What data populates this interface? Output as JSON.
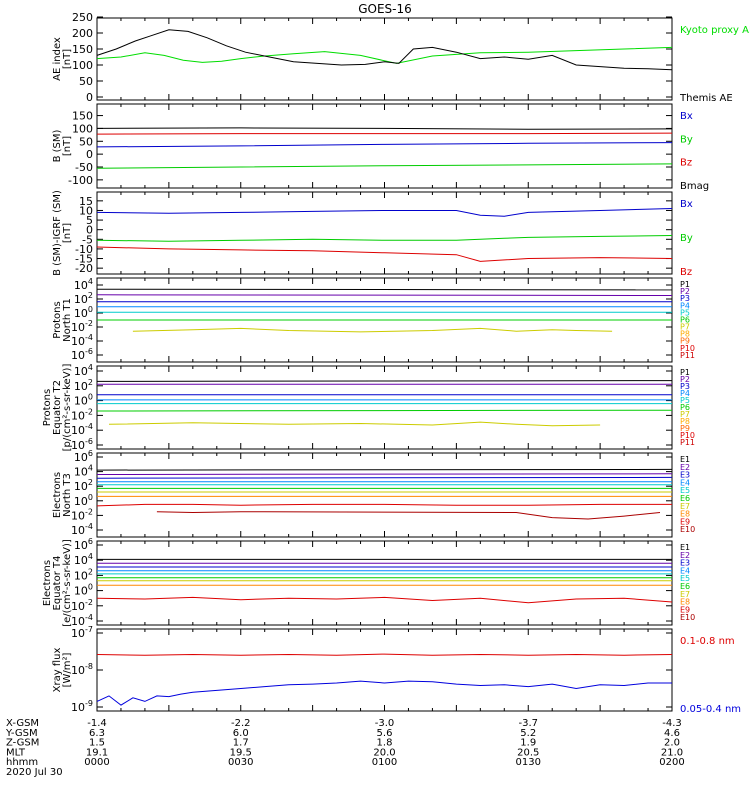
{
  "title": "GOES-16",
  "date_label": "2020 Jul 30",
  "orbit_rows": [
    {
      "label": "X-GSM",
      "values": [
        "-1.4",
        "-2.2",
        "-3.0",
        "-3.7",
        "-4.3"
      ]
    },
    {
      "label": "Y-GSM",
      "values": [
        "6.3",
        "6.0",
        "5.6",
        "5.2",
        "4.6"
      ]
    },
    {
      "label": "Z-GSM",
      "values": [
        "1.5",
        "1.7",
        "1.8",
        "1.9",
        "2.0"
      ]
    },
    {
      "label": "MLT",
      "values": [
        "19.1",
        "19.5",
        "20.0",
        "20.5",
        "21.0"
      ]
    },
    {
      "label": "hhmm",
      "values": [
        "0000",
        "0030",
        "0100",
        "0130",
        "0200"
      ]
    }
  ],
  "chart_data": [
    {
      "type": "line",
      "ylabel": [
        "AE index",
        "[nT]"
      ],
      "yscale": "linear",
      "ylim": [
        0,
        250
      ],
      "yticks": [
        "0",
        "50",
        "100",
        "150",
        "200",
        "250"
      ],
      "series": [
        {
          "name": "Kyoto proxy AE",
          "color": "#00dd00",
          "x": [
            0,
            10,
            20,
            28,
            36,
            44,
            52,
            60,
            70,
            82,
            95,
            110,
            125,
            140,
            160,
            180,
            200,
            220,
            240
          ],
          "y": [
            120,
            125,
            138,
            130,
            115,
            108,
            112,
            120,
            128,
            135,
            142,
            130,
            105,
            128,
            138,
            140,
            145,
            150,
            155
          ]
        },
        {
          "name": "Themis AE",
          "color": "#000000",
          "x": [
            0,
            8,
            16,
            22,
            30,
            38,
            46,
            54,
            62,
            72,
            82,
            92,
            102,
            112,
            120,
            126,
            132,
            140,
            150,
            160,
            170,
            180,
            190,
            200,
            210,
            220,
            230,
            240
          ],
          "y": [
            130,
            150,
            175,
            190,
            210,
            205,
            185,
            160,
            140,
            125,
            110,
            105,
            100,
            102,
            110,
            105,
            150,
            155,
            140,
            120,
            125,
            118,
            130,
            100,
            95,
            90,
            88,
            85
          ]
        }
      ]
    },
    {
      "type": "line",
      "ylabel": [
        "B (SM)",
        "[nT]"
      ],
      "yscale": "linear",
      "ylim": [
        -120,
        160
      ],
      "yticks": [
        "-100",
        "-50",
        "0",
        "50",
        "100",
        "150"
      ],
      "series": [
        {
          "name": "Bx",
          "color": "#0000cc",
          "x": [
            0,
            60,
            120,
            180,
            240
          ],
          "y": [
            28,
            32,
            38,
            42,
            45
          ]
        },
        {
          "name": "By",
          "color": "#00cc00",
          "x": [
            0,
            60,
            120,
            180,
            240
          ],
          "y": [
            -55,
            -50,
            -45,
            -42,
            -38
          ]
        },
        {
          "name": "Bz",
          "color": "#dd0000",
          "x": [
            0,
            60,
            120,
            180,
            240
          ],
          "y": [
            78,
            80,
            80,
            80,
            82
          ]
        },
        {
          "name": "Bmag",
          "color": "#000000",
          "x": [
            0,
            60,
            120,
            180,
            240
          ],
          "y": [
            100,
            102,
            100,
            97,
            98
          ]
        }
      ]
    },
    {
      "type": "line",
      "ylabel": [
        "B (SM)-IGRF (SM)",
        "[nT]"
      ],
      "yscale": "linear",
      "ylim": [
        -22,
        17
      ],
      "yticks": [
        "-20",
        "-15",
        "-10",
        "-5",
        "0",
        "5",
        "10",
        "15"
      ],
      "series": [
        {
          "name": "Bx",
          "color": "#0000cc",
          "x": [
            0,
            30,
            60,
            90,
            120,
            150,
            160,
            170,
            180,
            210,
            240
          ],
          "y": [
            9,
            8.5,
            9,
            9.5,
            10,
            10,
            7.5,
            7,
            9,
            10,
            11
          ]
        },
        {
          "name": "By",
          "color": "#00cc00",
          "x": [
            0,
            30,
            60,
            90,
            120,
            150,
            170,
            180,
            210,
            240
          ],
          "y": [
            -5.5,
            -6,
            -5.5,
            -5,
            -5.5,
            -5.5,
            -4.5,
            -4,
            -3.5,
            -3
          ]
        },
        {
          "name": "Bz",
          "color": "#dd0000",
          "x": [
            0,
            30,
            60,
            90,
            120,
            150,
            160,
            180,
            210,
            240
          ],
          "y": [
            -9,
            -10,
            -10.5,
            -11,
            -12,
            -13,
            -16.5,
            -15,
            -14.5,
            -15
          ]
        }
      ]
    },
    {
      "type": "line",
      "ylabel": [
        "Protons",
        "North T1"
      ],
      "yscale": "log",
      "ylim": [
        -6,
        4
      ],
      "ytick_exponents": [
        -6,
        -4,
        -2,
        0,
        2,
        4
      ],
      "series": [
        {
          "name": "P1",
          "color": "#000000",
          "x": [
            0,
            240
          ],
          "y": [
            3.4,
            3.3
          ]
        },
        {
          "name": "P2",
          "color": "#6600aa",
          "x": [
            0,
            240
          ],
          "y": [
            2.6,
            2.5
          ]
        },
        {
          "name": "P3",
          "color": "#0000cc",
          "x": [
            0,
            240
          ],
          "y": [
            1.6,
            1.6
          ]
        },
        {
          "name": "P4",
          "color": "#0088ff",
          "x": [
            0,
            240
          ],
          "y": [
            0.9,
            0.9
          ]
        },
        {
          "name": "P5",
          "color": "#00cccc",
          "x": [
            0,
            240
          ],
          "y": [
            0.1,
            0.1
          ]
        },
        {
          "name": "P6",
          "color": "#00cc00",
          "x": [
            0,
            240
          ],
          "y": [
            -1.0,
            -1.0
          ]
        },
        {
          "name": "P7",
          "color": "#cccc00",
          "x": [
            15,
            40,
            60,
            80,
            110,
            140,
            160,
            175,
            190,
            200,
            215
          ],
          "y": [
            -2.6,
            -2.4,
            -2.2,
            -2.5,
            -2.7,
            -2.5,
            -2.2,
            -2.6,
            -2.4,
            -2.5,
            -2.6
          ]
        },
        {
          "name": "P8",
          "color": "#ffaa00",
          "x": [],
          "y": []
        },
        {
          "name": "P9",
          "color": "#ff6600",
          "x": [],
          "y": []
        },
        {
          "name": "P10",
          "color": "#dd0000",
          "x": [],
          "y": []
        },
        {
          "name": "P11",
          "color": "#cc0000",
          "x": [],
          "y": []
        }
      ]
    },
    {
      "type": "line",
      "ylabel": [
        "Protons",
        "Equator T2",
        "[p/(cm²-s-sr-keV)]"
      ],
      "yscale": "log",
      "ylim": [
        -6,
        4
      ],
      "ytick_exponents": [
        -6,
        -4,
        -2,
        0,
        2,
        4
      ],
      "series": [
        {
          "name": "P1",
          "color": "#000000",
          "x": [
            0,
            240
          ],
          "y": [
            2.6,
            2.7
          ]
        },
        {
          "name": "P2",
          "color": "#6600aa",
          "x": [
            0,
            240
          ],
          "y": [
            2.2,
            2.2
          ]
        },
        {
          "name": "P3",
          "color": "#0000cc",
          "x": [
            0,
            240
          ],
          "y": [
            0.8,
            0.8
          ]
        },
        {
          "name": "P4",
          "color": "#0088ff",
          "x": [
            0,
            240
          ],
          "y": [
            0.1,
            0.1
          ]
        },
        {
          "name": "P5",
          "color": "#00cccc",
          "x": [
            0,
            240
          ],
          "y": [
            -0.4,
            -0.4
          ]
        },
        {
          "name": "P6",
          "color": "#00cc00",
          "x": [
            0,
            240
          ],
          "y": [
            -1.4,
            -1.3
          ]
        },
        {
          "name": "P7",
          "color": "#cccc00",
          "x": [
            5,
            40,
            80,
            110,
            140,
            160,
            175,
            190,
            210
          ],
          "y": [
            -3.2,
            -3.0,
            -3.2,
            -3.1,
            -3.3,
            -2.9,
            -3.2,
            -3.4,
            -3.3
          ]
        },
        {
          "name": "P8",
          "color": "#ffaa00",
          "x": [],
          "y": []
        },
        {
          "name": "P9",
          "color": "#ff6600",
          "x": [],
          "y": []
        },
        {
          "name": "P10",
          "color": "#dd0000",
          "x": [],
          "y": []
        },
        {
          "name": "P11",
          "color": "#cc0000",
          "x": [],
          "y": []
        }
      ]
    },
    {
      "type": "line",
      "ylabel": [
        "Electrons",
        "North T3"
      ],
      "yscale": "log",
      "ylim": [
        -4,
        6
      ],
      "ytick_exponents": [
        -4,
        -2,
        0,
        2,
        4,
        6
      ],
      "series": [
        {
          "name": "E1",
          "color": "#000000",
          "x": [
            0,
            240
          ],
          "y": [
            4.2,
            4.3
          ]
        },
        {
          "name": "E2",
          "color": "#6600aa",
          "x": [
            0,
            240
          ],
          "y": [
            3.6,
            3.7
          ]
        },
        {
          "name": "E3",
          "color": "#0000cc",
          "x": [
            0,
            240
          ],
          "y": [
            3.1,
            3.2
          ]
        },
        {
          "name": "E4",
          "color": "#0088ff",
          "x": [
            0,
            240
          ],
          "y": [
            2.6,
            2.6
          ]
        },
        {
          "name": "E5",
          "color": "#00cccc",
          "x": [
            0,
            240
          ],
          "y": [
            2.2,
            2.2
          ]
        },
        {
          "name": "E6",
          "color": "#00cc00",
          "x": [
            0,
            240
          ],
          "y": [
            1.7,
            1.7
          ]
        },
        {
          "name": "E7",
          "color": "#cccc00",
          "x": [
            0,
            240
          ],
          "y": [
            1.2,
            1.2
          ]
        },
        {
          "name": "E8",
          "color": "#ff8800",
          "x": [
            0,
            240
          ],
          "y": [
            0.6,
            0.6
          ]
        },
        {
          "name": "E9",
          "color": "#dd0000",
          "x": [
            0,
            20,
            40,
            60,
            90,
            120,
            150,
            180,
            210,
            240
          ],
          "y": [
            -0.7,
            -0.5,
            -0.5,
            -0.6,
            -0.5,
            -0.5,
            -0.6,
            -0.6,
            -0.5,
            -0.5
          ]
        },
        {
          "name": "E10",
          "color": "#aa0000",
          "x": [
            25,
            40,
            60,
            70,
            175,
            190,
            205,
            220,
            235
          ],
          "y": [
            -1.5,
            -1.6,
            -1.5,
            -1.5,
            -1.6,
            -2.3,
            -2.5,
            -2.1,
            -1.6
          ]
        }
      ]
    },
    {
      "type": "line",
      "ylabel": [
        "Electrons",
        "Equator T4",
        "[e/(cm²-s-sr-keV)]"
      ],
      "yscale": "log",
      "ylim": [
        -4,
        6
      ],
      "ytick_exponents": [
        -4,
        -2,
        0,
        2,
        4,
        6
      ],
      "series": [
        {
          "name": "E1",
          "color": "#000000",
          "x": [
            0,
            240
          ],
          "y": [
            4.1,
            4.1
          ]
        },
        {
          "name": "E2",
          "color": "#6600aa",
          "x": [
            0,
            240
          ],
          "y": [
            3.6,
            3.6
          ]
        },
        {
          "name": "E3",
          "color": "#0000cc",
          "x": [
            0,
            240
          ],
          "y": [
            3.1,
            3.1
          ]
        },
        {
          "name": "E4",
          "color": "#0088ff",
          "x": [
            0,
            240
          ],
          "y": [
            2.6,
            2.6
          ]
        },
        {
          "name": "E5",
          "color": "#00cccc",
          "x": [
            0,
            240
          ],
          "y": [
            2.2,
            2.2
          ]
        },
        {
          "name": "E6",
          "color": "#00cc00",
          "x": [
            0,
            240
          ],
          "y": [
            1.7,
            1.7
          ]
        },
        {
          "name": "E7",
          "color": "#cccc00",
          "x": [
            0,
            240
          ],
          "y": [
            1.3,
            1.3
          ]
        },
        {
          "name": "E8",
          "color": "#ff8800",
          "x": [
            0,
            240
          ],
          "y": [
            0.7,
            0.7
          ]
        },
        {
          "name": "E9",
          "color": "#dd0000",
          "x": [
            0,
            20,
            40,
            60,
            80,
            100,
            120,
            140,
            160,
            180,
            200,
            220,
            240
          ],
          "y": [
            -1.0,
            -1.1,
            -0.9,
            -1.2,
            -1.0,
            -1.1,
            -0.9,
            -1.3,
            -1.0,
            -1.6,
            -1.1,
            -1.0,
            -1.5
          ]
        },
        {
          "name": "E10",
          "color": "#aa0000",
          "x": [],
          "y": []
        }
      ]
    },
    {
      "type": "line",
      "ylabel": [
        "Xray flux",
        "[W/m²]"
      ],
      "yscale": "log",
      "ylim": [
        -9,
        -7
      ],
      "ytick_exponents": [
        -9,
        -8,
        -7
      ],
      "series": [
        {
          "name": "0.1-0.8 nm",
          "color": "#dd0000",
          "x": [
            0,
            20,
            40,
            60,
            80,
            100,
            120,
            140,
            160,
            180,
            200,
            220,
            240
          ],
          "y": [
            -7.58,
            -7.6,
            -7.58,
            -7.6,
            -7.58,
            -7.6,
            -7.57,
            -7.6,
            -7.58,
            -7.6,
            -7.58,
            -7.6,
            -7.58
          ]
        },
        {
          "name": "0.05-0.4 nm",
          "color": "#0000dd",
          "x": [
            0,
            5,
            10,
            15,
            20,
            25,
            30,
            35,
            40,
            50,
            60,
            70,
            80,
            90,
            100,
            110,
            120,
            130,
            140,
            150,
            160,
            170,
            180,
            190,
            200,
            210,
            220,
            230,
            240
          ],
          "y": [
            -8.85,
            -8.7,
            -8.95,
            -8.75,
            -8.85,
            -8.7,
            -8.72,
            -8.65,
            -8.6,
            -8.55,
            -8.5,
            -8.45,
            -8.4,
            -8.38,
            -8.35,
            -8.3,
            -8.35,
            -8.3,
            -8.32,
            -8.38,
            -8.42,
            -8.4,
            -8.45,
            -8.38,
            -8.5,
            -8.4,
            -8.42,
            -8.35,
            -8.35
          ]
        }
      ]
    }
  ]
}
